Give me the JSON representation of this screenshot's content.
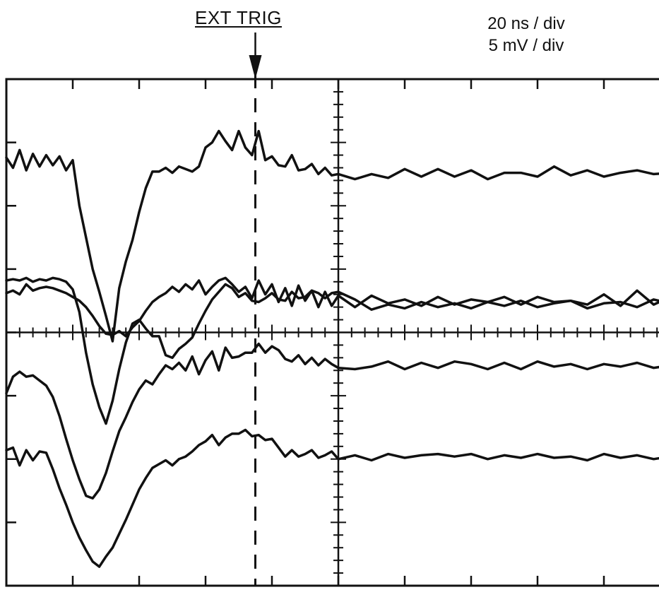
{
  "annotations": {
    "trigger_label": "EXT TRIG",
    "time_scale": "20 ns / div",
    "volt_scale": "5 mV / div"
  },
  "chart_data": {
    "type": "line",
    "title": "",
    "xlabel": "",
    "ylabel": "",
    "x_unit": "ns",
    "y_unit": "mV",
    "x_divisions": 10,
    "y_divisions": 8,
    "xlim": [
      -100,
      100
    ],
    "ylim": [
      -20,
      20
    ],
    "grid": false,
    "trigger_x": -25,
    "trace_color": "#111111",
    "series": [
      {
        "x": [
          -100,
          -98,
          -96,
          -94,
          -92,
          -90,
          -88,
          -86,
          -84,
          -82,
          -80,
          -78,
          -76,
          -74,
          -72,
          -70,
          -68,
          -66,
          -64,
          -62,
          -60,
          -58,
          -56,
          -54,
          -52,
          -50,
          -48,
          -46,
          -44,
          -42,
          -40,
          -38,
          -36,
          -34,
          -32,
          -30,
          -28,
          -26,
          -24,
          -22,
          -20,
          -18,
          -16,
          -14,
          -12,
          -10,
          -8,
          -6,
          -4,
          -2,
          0,
          5,
          10,
          15,
          20,
          25,
          30,
          35,
          40,
          45,
          50,
          55,
          60,
          65,
          70,
          75,
          80,
          85,
          90,
          95,
          100
        ],
        "y": [
          13.8,
          13.0,
          14.4,
          12.8,
          14.1,
          13.1,
          14.0,
          13.2,
          13.9,
          12.8,
          13.6,
          10.0,
          7.5,
          5.0,
          3.2,
          1.3,
          -0.7,
          3.5,
          5.6,
          7.3,
          9.5,
          11.4,
          12.7,
          12.7,
          13.0,
          12.6,
          13.1,
          12.9,
          12.7,
          13.1,
          14.6,
          15.0,
          15.9,
          15.1,
          14.4,
          15.9,
          14.6,
          14.0,
          15.9,
          13.6,
          13.9,
          13.2,
          13.1,
          14.0,
          12.8,
          12.9,
          13.3,
          12.5,
          13.0,
          12.4,
          12.5,
          12.1,
          12.5,
          12.2,
          12.9,
          12.3,
          12.9,
          12.3,
          12.8,
          12.1,
          12.6,
          12.6,
          12.3,
          13.1,
          12.4,
          12.8,
          12.3,
          12.6,
          12.8,
          12.5,
          12.6
        ]
      },
      {
        "x": [
          -100,
          -98,
          -96,
          -94,
          -92,
          -90,
          -88,
          -86,
          -84,
          -82,
          -80,
          -78,
          -76,
          -74,
          -72,
          -70,
          -68,
          -66,
          -64,
          -62,
          -60,
          -58,
          -56,
          -54,
          -52,
          -50,
          -48,
          -46,
          -44,
          -42,
          -40,
          -38,
          -36,
          -34,
          -32,
          -30,
          -28,
          -26,
          -24,
          -22,
          -20,
          -18,
          -16,
          -14,
          -12,
          -10,
          -8,
          -6,
          -4,
          -2,
          0,
          5,
          10,
          15,
          20,
          25,
          30,
          35,
          40,
          45,
          50,
          55,
          60,
          65,
          70,
          75,
          80,
          85,
          90,
          95,
          100
        ],
        "y": [
          3.1,
          3.3,
          3.0,
          3.8,
          3.3,
          3.5,
          3.6,
          3.5,
          3.3,
          3.1,
          2.8,
          2.5,
          2.0,
          1.3,
          0.5,
          -0.1,
          -0.2,
          0.1,
          -0.3,
          0.4,
          0.9,
          1.7,
          2.4,
          2.8,
          3.1,
          3.6,
          3.2,
          3.8,
          3.4,
          4.1,
          3.0,
          3.6,
          4.1,
          4.3,
          3.8,
          3.2,
          3.6,
          2.7,
          4.1,
          3.0,
          3.8,
          2.4,
          3.5,
          2.1,
          3.7,
          2.5,
          3.3,
          2.0,
          3.2,
          2.1,
          2.9,
          2.0,
          2.9,
          2.3,
          2.6,
          2.1,
          2.8,
          2.2,
          2.6,
          2.4,
          2.8,
          2.2,
          2.8,
          2.4,
          2.5,
          2.2,
          3.0,
          2.1,
          3.3,
          2.2,
          2.8
        ]
      },
      {
        "x": [
          -100,
          -98,
          -96,
          -94,
          -92,
          -90,
          -88,
          -86,
          -84,
          -82,
          -80,
          -78,
          -76,
          -74,
          -72,
          -70,
          -68,
          -66,
          -64,
          -62,
          -60,
          -58,
          -56,
          -54,
          -52,
          -50,
          -48,
          -46,
          -44,
          -42,
          -40,
          -38,
          -36,
          -34,
          -32,
          -30,
          -28,
          -26,
          -24,
          -22,
          -20,
          -18,
          -16,
          -14,
          -12,
          -10,
          -8,
          -6,
          -4,
          -2,
          0,
          5,
          10,
          15,
          20,
          25,
          30,
          35,
          40,
          45,
          50,
          55,
          60,
          65,
          70,
          75,
          80,
          85,
          90,
          95,
          100
        ],
        "y": [
          4.1,
          4.2,
          4.1,
          4.3,
          4.0,
          4.2,
          4.1,
          4.3,
          4.2,
          4.0,
          3.4,
          1.6,
          -1.6,
          -4.1,
          -5.9,
          -7.2,
          -5.4,
          -2.9,
          -0.8,
          0.7,
          1.0,
          0.3,
          -0.3,
          -0.3,
          -1.8,
          -2.0,
          -1.3,
          -0.9,
          -0.4,
          0.7,
          1.7,
          2.6,
          3.2,
          3.8,
          3.5,
          2.8,
          3.1,
          2.5,
          2.4,
          2.7,
          3.1,
          2.6,
          2.5,
          3.2,
          2.7,
          2.8,
          3.3,
          3.1,
          2.7,
          3.1,
          3.2,
          2.6,
          1.8,
          2.2,
          1.9,
          2.4,
          2.0,
          2.3,
          1.9,
          2.4,
          2.1,
          2.5,
          2.0,
          2.3,
          2.5,
          1.9,
          2.3,
          2.4,
          2.0,
          2.6,
          2.3
        ]
      },
      {
        "x": [
          -100,
          -98,
          -96,
          -94,
          -92,
          -90,
          -88,
          -86,
          -84,
          -82,
          -80,
          -78,
          -76,
          -74,
          -72,
          -70,
          -68,
          -66,
          -64,
          -62,
          -60,
          -58,
          -56,
          -54,
          -52,
          -50,
          -48,
          -46,
          -44,
          -42,
          -40,
          -38,
          -36,
          -34,
          -32,
          -30,
          -28,
          -26,
          -24,
          -22,
          -20,
          -18,
          -16,
          -14,
          -12,
          -10,
          -8,
          -6,
          -4,
          -2,
          0,
          5,
          10,
          15,
          20,
          25,
          30,
          35,
          40,
          45,
          50,
          55,
          60,
          65,
          70,
          75,
          80,
          85,
          90,
          95,
          100
        ],
        "y": [
          -4.8,
          -3.5,
          -3.1,
          -3.5,
          -3.4,
          -3.8,
          -4.2,
          -5.1,
          -6.6,
          -8.4,
          -10.1,
          -11.6,
          -12.9,
          -13.1,
          -12.4,
          -11.1,
          -9.4,
          -7.8,
          -6.7,
          -5.5,
          -4.5,
          -3.8,
          -4.1,
          -3.3,
          -2.6,
          -2.9,
          -2.4,
          -3.0,
          -1.9,
          -3.3,
          -2.2,
          -1.5,
          -3.0,
          -1.2,
          -2.0,
          -1.9,
          -1.6,
          -1.6,
          -0.9,
          -1.6,
          -1.1,
          -1.4,
          -2.1,
          -2.3,
          -1.8,
          -2.5,
          -2.0,
          -2.6,
          -2.1,
          -2.5,
          -2.8,
          -2.9,
          -2.7,
          -2.3,
          -2.9,
          -2.4,
          -2.8,
          -2.3,
          -2.5,
          -2.9,
          -2.4,
          -2.9,
          -2.3,
          -2.7,
          -2.5,
          -2.9,
          -2.5,
          -2.7,
          -2.4,
          -2.8,
          -2.6
        ]
      },
      {
        "x": [
          -100,
          -98,
          -96,
          -94,
          -92,
          -90,
          -88,
          -86,
          -84,
          -82,
          -80,
          -78,
          -76,
          -74,
          -72,
          -70,
          -68,
          -66,
          -64,
          -62,
          -60,
          -58,
          -56,
          -54,
          -52,
          -50,
          -48,
          -46,
          -44,
          -42,
          -40,
          -38,
          -36,
          -34,
          -32,
          -30,
          -28,
          -26,
          -24,
          -22,
          -20,
          -18,
          -16,
          -14,
          -12,
          -10,
          -8,
          -6,
          -4,
          -2,
          0,
          5,
          10,
          15,
          20,
          25,
          30,
          35,
          40,
          45,
          50,
          55,
          60,
          65,
          70,
          75,
          80,
          85,
          90,
          95,
          100
        ],
        "y": [
          -9.3,
          -9.1,
          -10.5,
          -9.3,
          -10.1,
          -9.4,
          -9.5,
          -10.8,
          -12.3,
          -13.6,
          -15.0,
          -16.2,
          -17.2,
          -18.1,
          -18.5,
          -17.7,
          -17.0,
          -15.9,
          -14.8,
          -13.6,
          -12.4,
          -11.5,
          -10.7,
          -10.4,
          -10.1,
          -10.5,
          -10.0,
          -9.8,
          -9.4,
          -8.9,
          -8.6,
          -8.1,
          -8.9,
          -8.3,
          -8.0,
          -8.0,
          -7.7,
          -8.2,
          -8.1,
          -8.5,
          -8.4,
          -9.1,
          -9.8,
          -9.3,
          -9.8,
          -9.6,
          -9.3,
          -9.9,
          -9.7,
          -9.4,
          -10.0,
          -9.7,
          -10.1,
          -9.6,
          -9.9,
          -9.7,
          -9.6,
          -9.8,
          -9.6,
          -10.0,
          -9.7,
          -9.9,
          -9.6,
          -9.9,
          -9.8,
          -10.1,
          -9.6,
          -9.9,
          -9.7,
          -10.0,
          -9.8
        ]
      }
    ]
  }
}
